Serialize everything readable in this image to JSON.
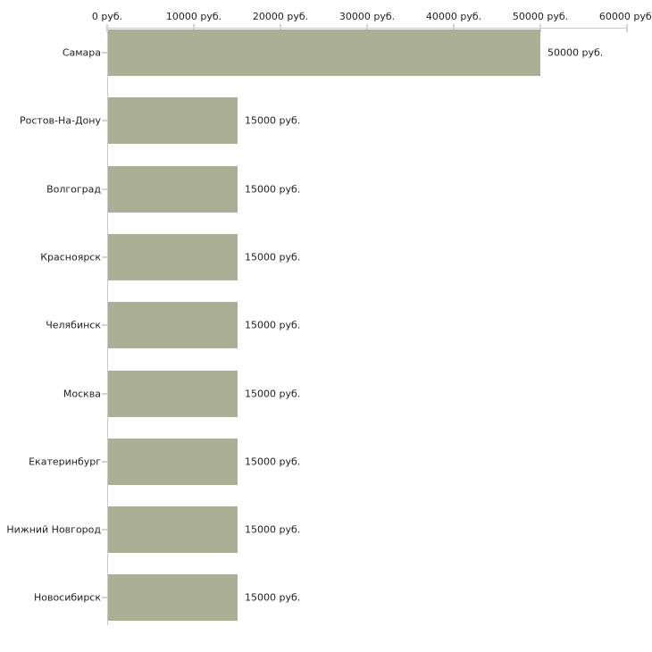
{
  "chart_data": {
    "type": "bar",
    "orientation": "horizontal",
    "title": "",
    "xlabel": "",
    "ylabel": "",
    "unit": "руб.",
    "grid": false,
    "legend": null,
    "xlim": [
      0,
      60000
    ],
    "categories": [
      "Самара",
      "Ростов-На-Дону",
      "Волгоград",
      "Красноярск",
      "Челябинск",
      "Москва",
      "Екатеринбург",
      "Нижний Новгород",
      "Новосибирск"
    ],
    "values": [
      50000,
      15000,
      15000,
      15000,
      15000,
      15000,
      15000,
      15000,
      15000
    ],
    "value_labels": [
      "50000 руб.",
      "15000 руб.",
      "15000 руб.",
      "15000 руб.",
      "15000 руб.",
      "15000 руб.",
      "15000 руб.",
      "15000 руб.",
      "15000 руб."
    ],
    "x_ticks": [
      {
        "value": 0,
        "label": "0 руб."
      },
      {
        "value": 10000,
        "label": "10000 руб."
      },
      {
        "value": 20000,
        "label": "20000 руб."
      },
      {
        "value": 30000,
        "label": "30000 руб."
      },
      {
        "value": 40000,
        "label": "40000 руб."
      },
      {
        "value": 50000,
        "label": "50000 руб."
      },
      {
        "value": 60000,
        "label": "60000 руб."
      }
    ],
    "colors": {
      "bar": "#abb095",
      "axis_line": "#c9c9c9",
      "tick_mark": "#d4d6bf",
      "text": "#1f1f1f",
      "background": "#ffffff"
    }
  }
}
